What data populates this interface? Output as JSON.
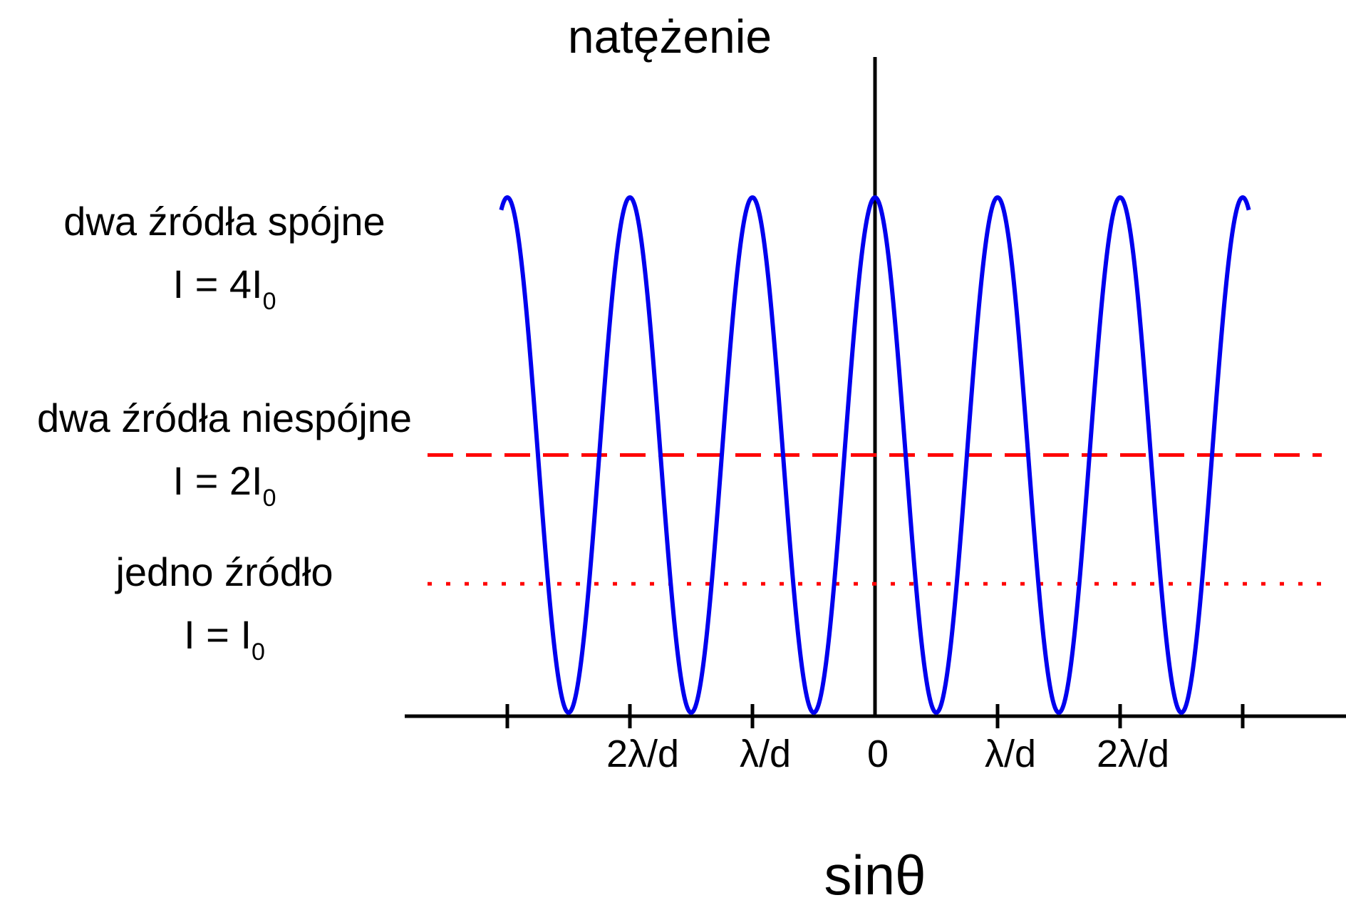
{
  "chart_data": {
    "type": "line",
    "ylabel": "natężenie",
    "xlabel": "sinθ",
    "x_tick_labels": [
      "",
      "2λ/d",
      "λ/d",
      "0",
      "λ/d",
      "2λ/d",
      ""
    ],
    "x_period_label": "λ/d",
    "x_range_periods": [
      -3.05,
      3.05
    ],
    "ylim": [
      0,
      4.4
    ],
    "series": [
      {
        "curve": "cos2",
        "peak": 4,
        "color": "#0000ee",
        "style": "solid"
      },
      {
        "level": 2,
        "color": "#ff0000",
        "style": "dashed"
      },
      {
        "level": 1,
        "color": "#ff0000",
        "style": "dotted"
      }
    ],
    "annotations": [
      {
        "line1": "dwa źródła spójne",
        "line2_main": "I = 4I",
        "line2_sub": "0"
      },
      {
        "line1": "dwa źródła niespójne",
        "line2_main": "I = 2I",
        "line2_sub": "0"
      },
      {
        "line1": "jedno źródło",
        "line2_main": "I = I",
        "line2_sub": "0"
      }
    ],
    "grid": false,
    "legend": "none"
  }
}
